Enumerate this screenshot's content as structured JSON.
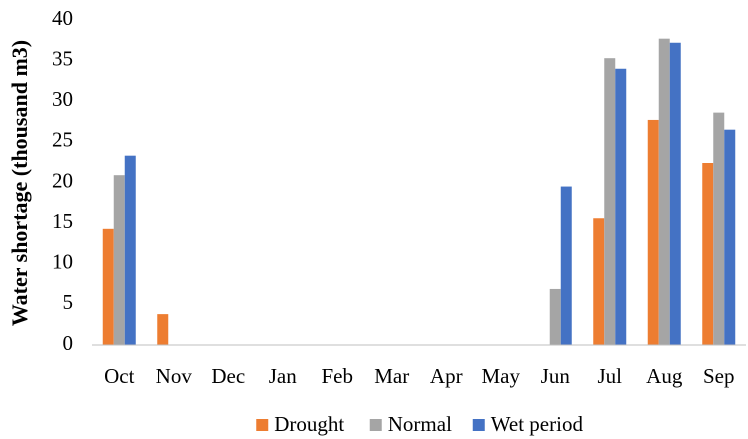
{
  "chart_data": {
    "type": "bar",
    "y_label": "Water shortage (thousand m3)",
    "categories": [
      "Oct",
      "Nov",
      "Dec",
      "Jan",
      "Feb",
      "Mar",
      "Apr",
      "May",
      "Jun",
      "Jul",
      "Aug",
      "Sep"
    ],
    "series": [
      {
        "name": "Drought",
        "color": "#ed7d31",
        "values": [
          14.3,
          3.8,
          0,
          0,
          0,
          0,
          0,
          0,
          0,
          15.6,
          27.7,
          22.4
        ]
      },
      {
        "name": "Normal",
        "color": "#a5a5a5",
        "values": [
          20.9,
          0,
          0,
          0,
          0,
          0,
          0,
          0,
          6.9,
          35.3,
          37.7,
          28.6
        ]
      },
      {
        "name": "Wet period",
        "color": "#4472c4",
        "values": [
          23.3,
          0,
          0,
          0,
          0,
          0,
          0,
          0,
          19.5,
          34.0,
          37.2,
          26.5
        ]
      }
    ],
    "ylim": [
      0,
      40
    ],
    "yticks": [
      0,
      5,
      10,
      15,
      20,
      25,
      30,
      35,
      40
    ],
    "grid": false,
    "legend": "bottom"
  }
}
